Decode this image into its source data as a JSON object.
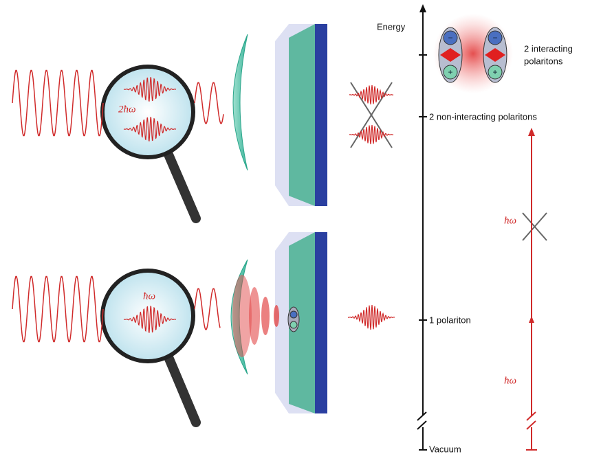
{
  "energy_axis": {
    "label": "Energy",
    "levels": {
      "interacting": [
        "2 interacting",
        "polaritons"
      ],
      "non_interacting": "2 non-interacting polaritons",
      "one": "1 polariton",
      "vacuum": "Vacuum"
    }
  },
  "photon_labels": {
    "two_photon": "2ħω",
    "one_photon": "ħω",
    "transition_upper": "ħω",
    "transition_lower": "ħω"
  },
  "charges": {
    "minus": "−",
    "plus": "+"
  }
}
